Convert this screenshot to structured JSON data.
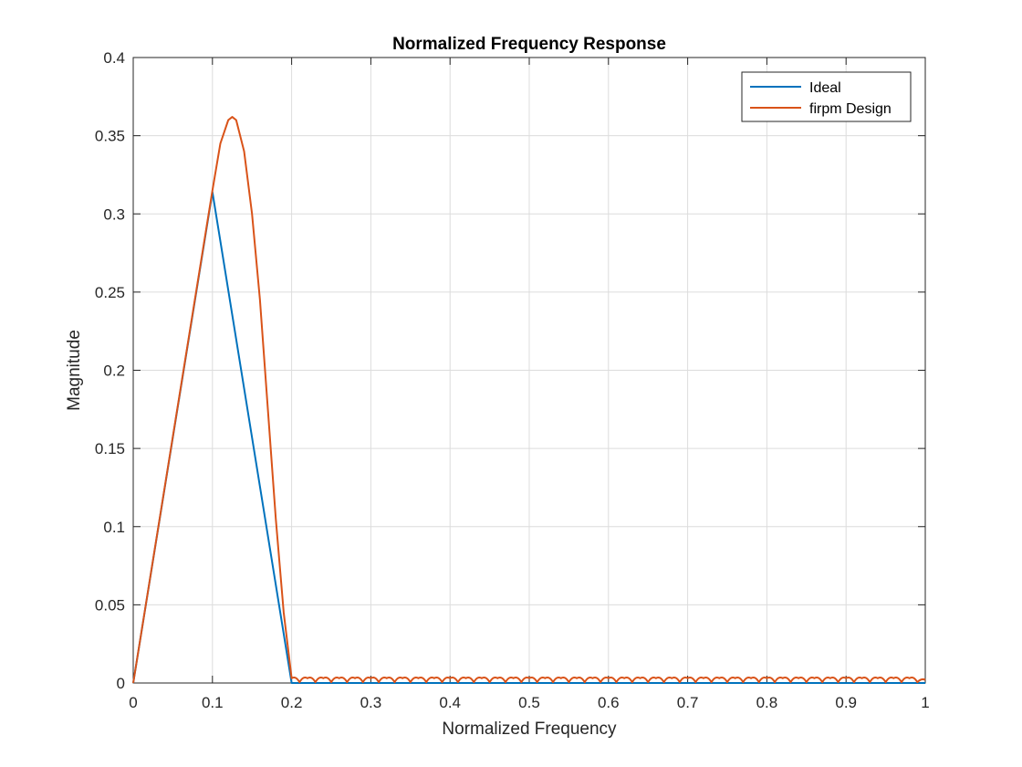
{
  "chart_data": {
    "type": "line",
    "title": "Normalized Frequency Response",
    "xlabel": "Normalized Frequency",
    "ylabel": "Magnitude",
    "xlim": [
      0,
      1
    ],
    "ylim": [
      0,
      0.4
    ],
    "xticks": [
      "0",
      "0.1",
      "0.2",
      "0.3",
      "0.4",
      "0.5",
      "0.6",
      "0.7",
      "0.8",
      "0.9",
      "1"
    ],
    "yticks": [
      "0",
      "0.05",
      "0.1",
      "0.15",
      "0.2",
      "0.25",
      "0.3",
      "0.35",
      "0.4"
    ],
    "grid": true,
    "legend_position": "top-right",
    "series": [
      {
        "name": "Ideal",
        "color": "#0072BD",
        "x": [
          0,
          0.1,
          0.2,
          1.0
        ],
        "y": [
          0,
          0.314,
          0,
          0
        ]
      },
      {
        "name": "firpm Design",
        "color": "#D95319",
        "x": [
          0,
          0.02,
          0.04,
          0.06,
          0.08,
          0.1,
          0.11,
          0.12,
          0.125,
          0.13,
          0.14,
          0.15,
          0.16,
          0.17,
          0.18,
          0.19,
          0.2,
          0.21,
          0.22,
          0.23,
          0.24,
          0.25,
          0.26,
          0.27,
          0.28,
          0.29,
          0.3,
          0.31,
          0.32,
          0.33,
          0.34,
          0.35,
          0.36,
          0.37,
          0.38,
          0.39,
          0.4,
          0.41,
          0.42,
          0.43,
          0.44,
          0.45,
          0.46,
          0.47,
          0.48,
          0.49,
          0.5,
          0.51,
          0.52,
          0.53,
          0.54,
          0.55,
          0.56,
          0.57,
          0.58,
          0.59,
          0.6,
          0.61,
          0.62,
          0.63,
          0.64,
          0.65,
          0.66,
          0.67,
          0.68,
          0.69,
          0.7,
          0.71,
          0.72,
          0.73,
          0.74,
          0.75,
          0.76,
          0.77,
          0.78,
          0.79,
          0.8,
          0.81,
          0.82,
          0.83,
          0.84,
          0.85,
          0.86,
          0.87,
          0.88,
          0.89,
          0.9,
          0.91,
          0.92,
          0.93,
          0.94,
          0.95,
          0.96,
          0.97,
          0.98,
          0.99,
          1.0
        ],
        "y": [
          0,
          0.063,
          0.126,
          0.189,
          0.252,
          0.315,
          0.345,
          0.36,
          0.362,
          0.36,
          0.34,
          0.3,
          0.245,
          0.175,
          0.105,
          0.045,
          0.003,
          0.0005,
          0.003,
          0.0005,
          0.003,
          0.0005,
          0.003,
          0.0005,
          0.003,
          0.0005,
          0.003,
          0.0005,
          0.003,
          0.0005,
          0.003,
          0.0005,
          0.003,
          0.0005,
          0.003,
          0.0005,
          0.003,
          0.0005,
          0.003,
          0.0005,
          0.003,
          0.0005,
          0.003,
          0.0005,
          0.003,
          0.0005,
          0.003,
          0.0005,
          0.003,
          0.0005,
          0.003,
          0.0005,
          0.003,
          0.0005,
          0.003,
          0.0005,
          0.003,
          0.0005,
          0.003,
          0.0005,
          0.003,
          0.0005,
          0.003,
          0.0005,
          0.003,
          0.0005,
          0.003,
          0.0005,
          0.003,
          0.0005,
          0.003,
          0.0005,
          0.003,
          0.0005,
          0.003,
          0.0005,
          0.003,
          0.0005,
          0.003,
          0.0005,
          0.003,
          0.0005,
          0.003,
          0.0005,
          0.003,
          0.0005,
          0.003,
          0.0005,
          0.003,
          0.0005,
          0.003,
          0.0005,
          0.003,
          0.0005,
          0.003,
          0.0005,
          0.002
        ]
      }
    ]
  }
}
